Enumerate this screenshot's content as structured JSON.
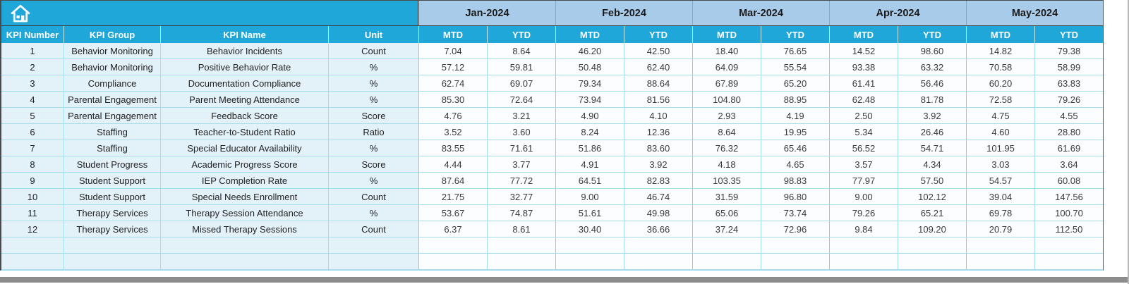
{
  "toolbar": {
    "home_icon": "home"
  },
  "table": {
    "columns": [
      "KPI Number",
      "KPI Group",
      "KPI Name",
      "Unit"
    ],
    "months": [
      "Jan-2024",
      "Feb-2024",
      "Mar-2024",
      "Apr-2024",
      "May-2024"
    ],
    "period_headers": [
      "MTD",
      "YTD"
    ],
    "rows": [
      {
        "number": "1",
        "group": "Behavior Monitoring",
        "name": "Behavior Incidents",
        "unit": "Count",
        "values": [
          "7.04",
          "8.64",
          "46.20",
          "42.50",
          "18.40",
          "76.65",
          "14.52",
          "98.60",
          "14.82",
          "79.38"
        ]
      },
      {
        "number": "2",
        "group": "Behavior Monitoring",
        "name": "Positive Behavior Rate",
        "unit": "%",
        "values": [
          "57.12",
          "59.81",
          "50.48",
          "62.40",
          "64.09",
          "55.54",
          "93.38",
          "63.32",
          "70.58",
          "58.99"
        ]
      },
      {
        "number": "3",
        "group": "Compliance",
        "name": "Documentation Compliance",
        "unit": "%",
        "values": [
          "62.74",
          "69.07",
          "79.34",
          "88.64",
          "67.89",
          "65.20",
          "61.41",
          "56.46",
          "60.20",
          "63.83"
        ]
      },
      {
        "number": "4",
        "group": "Parental Engagement",
        "name": "Parent Meeting Attendance",
        "unit": "%",
        "values": [
          "85.30",
          "72.64",
          "73.94",
          "81.56",
          "104.80",
          "88.95",
          "62.48",
          "81.78",
          "72.58",
          "79.26"
        ]
      },
      {
        "number": "5",
        "group": "Parental Engagement",
        "name": "Feedback Score",
        "unit": "Score",
        "values": [
          "4.76",
          "3.21",
          "4.90",
          "4.10",
          "2.93",
          "4.19",
          "2.50",
          "3.92",
          "4.75",
          "4.55"
        ]
      },
      {
        "number": "6",
        "group": "Staffing",
        "name": "Teacher-to-Student Ratio",
        "unit": "Ratio",
        "values": [
          "3.52",
          "3.60",
          "8.24",
          "12.36",
          "8.64",
          "19.95",
          "5.34",
          "26.46",
          "4.60",
          "28.80"
        ]
      },
      {
        "number": "7",
        "group": "Staffing",
        "name": "Special Educator Availability",
        "unit": "%",
        "values": [
          "83.55",
          "71.61",
          "51.86",
          "83.60",
          "76.32",
          "65.46",
          "56.52",
          "54.71",
          "101.95",
          "61.69"
        ]
      },
      {
        "number": "8",
        "group": "Student Progress",
        "name": "Academic Progress Score",
        "unit": "Score",
        "values": [
          "4.44",
          "3.77",
          "4.91",
          "3.92",
          "4.18",
          "4.65",
          "3.57",
          "4.34",
          "3.03",
          "3.64"
        ]
      },
      {
        "number": "9",
        "group": "Student Support",
        "name": "IEP Completion Rate",
        "unit": "%",
        "values": [
          "87.64",
          "77.72",
          "64.51",
          "82.83",
          "103.35",
          "98.83",
          "77.97",
          "57.50",
          "54.57",
          "60.08"
        ]
      },
      {
        "number": "10",
        "group": "Student Support",
        "name": "Special Needs Enrollment",
        "unit": "Count",
        "values": [
          "21.75",
          "32.77",
          "9.00",
          "46.74",
          "31.59",
          "96.80",
          "9.00",
          "102.12",
          "39.04",
          "147.56"
        ]
      },
      {
        "number": "11",
        "group": "Therapy Services",
        "name": "Therapy Session Attendance",
        "unit": "%",
        "values": [
          "53.67",
          "74.87",
          "51.61",
          "49.98",
          "65.06",
          "73.74",
          "79.26",
          "65.21",
          "69.78",
          "100.70"
        ]
      },
      {
        "number": "12",
        "group": "Therapy Services",
        "name": "Missed Therapy Sessions",
        "unit": "Count",
        "values": [
          "6.37",
          "8.61",
          "30.40",
          "36.66",
          "37.24",
          "72.96",
          "9.84",
          "109.20",
          "20.79",
          "112.50"
        ]
      },
      {
        "number": "",
        "group": "",
        "name": "",
        "unit": "",
        "values": [
          "",
          "",
          "",
          "",
          "",
          "",
          "",
          "",
          "",
          ""
        ]
      },
      {
        "number": "",
        "group": "",
        "name": "",
        "unit": "",
        "values": [
          "",
          "",
          "",
          "",
          "",
          "",
          "",
          "",
          "",
          ""
        ]
      }
    ],
    "colors": {
      "header_cyan": "#1fa7da",
      "month_band": "#a9cbea",
      "left_cell_fill": "#e3f1f9",
      "data_cell_fill": "#fbfdfe",
      "grid_line": "#a5deeb",
      "frame": "#404040",
      "header_text": "#ffffff",
      "month_text": "#1a1a1a",
      "cell_text": "#3a3a3a"
    }
  }
}
